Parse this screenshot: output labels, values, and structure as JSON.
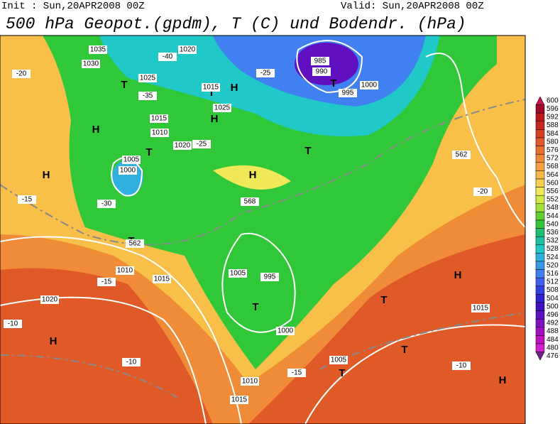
{
  "header": {
    "init": "Init : Sun,20APR2008 00Z",
    "valid": "Valid: Sun,20APR2008 00Z",
    "title": "500 hPa Geopot.(gpdm), T (C) und Bodendr. (hPa)"
  },
  "colorbar": {
    "labels": [
      600,
      596,
      592,
      588,
      584,
      580,
      576,
      572,
      568,
      564,
      560,
      556,
      552,
      548,
      544,
      540,
      536,
      532,
      528,
      524,
      520,
      516,
      512,
      508,
      504,
      500,
      496,
      492,
      488,
      484,
      480,
      476
    ],
    "colors": [
      "#c8104a",
      "#a00828",
      "#b81818",
      "#c82820",
      "#d84020",
      "#e05828",
      "#e87030",
      "#f08838",
      "#f8a040",
      "#f8b848",
      "#f8d050",
      "#f0e858",
      "#d0e848",
      "#a0e038",
      "#60d030",
      "#30c838",
      "#20c070",
      "#20c0a0",
      "#20c8c8",
      "#30b0e0",
      "#3898e8",
      "#4080f0",
      "#4060f0",
      "#3040e0",
      "#3020d0",
      "#4010c0",
      "#6010c0",
      "#8010c0",
      "#a010c0",
      "#c010c0",
      "#d020d0",
      "#702080"
    ]
  },
  "map": {
    "labels": [
      "1035",
      "1030",
      "1025",
      "-40",
      "1020",
      "-25",
      "985",
      "990",
      "995",
      "1000",
      "1000",
      "1005",
      "-20",
      "H",
      "H",
      "T",
      "T",
      "1015",
      "1015",
      "1010",
      "-30",
      "-35",
      "H",
      "T",
      "1025",
      "1020",
      "-15",
      "H",
      "T",
      "T",
      "1010",
      "-15",
      "1015",
      "T",
      "-25",
      "995",
      "1000",
      "T",
      "H",
      "-10",
      "1020",
      "H",
      "-10",
      "1015",
      "1005",
      "1010",
      "T",
      "T",
      "1005",
      "-15",
      "T",
      "-10",
      "H",
      "1015",
      "H",
      "-20",
      "568",
      "562",
      "562"
    ]
  }
}
